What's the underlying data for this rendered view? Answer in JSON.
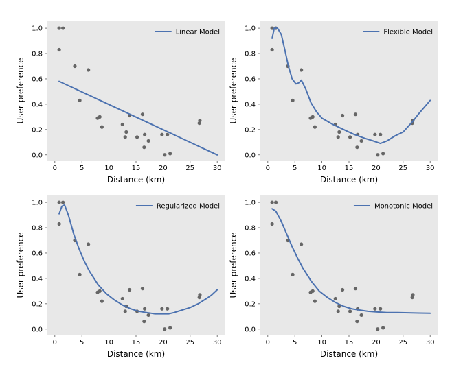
{
  "chart_data": [
    {
      "type": "scatter",
      "xlabel": "Distance (km)",
      "ylabel": "User preference",
      "xlim": [
        -1.5,
        31.5
      ],
      "ylim": [
        -0.05,
        1.06
      ],
      "xticks": [
        "0",
        "5",
        "10",
        "15",
        "20",
        "25",
        "30"
      ],
      "yticks": [
        "0.0",
        "0.2",
        "0.4",
        "0.6",
        "0.8",
        "1.0"
      ],
      "grid": false,
      "legend_position": "top-right",
      "points": {
        "x": [
          0.8,
          1.5,
          0.8,
          3.7,
          4.6,
          6.2,
          8.3,
          7.9,
          8.7,
          12.5,
          13.2,
          13.0,
          13.8,
          15.2,
          16.2,
          16.6,
          16.5,
          17.3,
          19.8,
          20.3,
          20.8,
          21.3,
          26.7,
          26.8
        ],
        "y": [
          1.0,
          1.0,
          0.83,
          0.7,
          0.43,
          0.67,
          0.3,
          0.29,
          0.22,
          0.24,
          0.18,
          0.14,
          0.31,
          0.14,
          0.32,
          0.16,
          0.06,
          0.11,
          0.16,
          0.0,
          0.16,
          0.01,
          0.25,
          0.27
        ]
      },
      "series": [
        {
          "name": "Linear Model",
          "x": [
            0.8,
            30
          ],
          "y": [
            0.58,
            0.0
          ]
        }
      ]
    },
    {
      "type": "scatter",
      "xlabel": "Distance (km)",
      "ylabel": "User preference",
      "xlim": [
        -1.5,
        31.5
      ],
      "ylim": [
        -0.05,
        1.06
      ],
      "xticks": [
        "0",
        "5",
        "10",
        "15",
        "20",
        "25",
        "30"
      ],
      "yticks": [
        "0.0",
        "0.2",
        "0.4",
        "0.6",
        "0.8",
        "1.0"
      ],
      "grid": false,
      "legend_position": "top-right",
      "points": {
        "x": [
          0.8,
          1.5,
          0.8,
          3.7,
          4.6,
          6.2,
          8.3,
          7.9,
          8.7,
          12.5,
          13.2,
          13.0,
          13.8,
          15.2,
          16.2,
          16.6,
          16.5,
          17.3,
          19.8,
          20.3,
          20.8,
          21.3,
          26.7,
          26.8
        ],
        "y": [
          1.0,
          1.0,
          0.83,
          0.7,
          0.43,
          0.67,
          0.3,
          0.29,
          0.22,
          0.24,
          0.18,
          0.14,
          0.31,
          0.14,
          0.32,
          0.16,
          0.06,
          0.11,
          0.16,
          0.0,
          0.16,
          0.01,
          0.25,
          0.27
        ]
      },
      "series": [
        {
          "name": "Flexible Model",
          "x": [
            0.8,
            1.2,
            1.8,
            2.5,
            3.2,
            3.8,
            4.5,
            5.2,
            5.8,
            6.2,
            7.0,
            8.0,
            9.0,
            10.0,
            12.0,
            14.0,
            16.0,
            18.0,
            19.5,
            20.8,
            22.0,
            23.5,
            25.0,
            26.7,
            28.0,
            29.0,
            30.0
          ],
          "y": [
            0.92,
            1.0,
            1.0,
            0.95,
            0.82,
            0.7,
            0.6,
            0.56,
            0.57,
            0.59,
            0.52,
            0.41,
            0.34,
            0.29,
            0.24,
            0.2,
            0.16,
            0.13,
            0.11,
            0.09,
            0.11,
            0.15,
            0.18,
            0.26,
            0.33,
            0.38,
            0.43
          ]
        }
      ]
    },
    {
      "type": "scatter",
      "xlabel": "Distance (km)",
      "ylabel": "User preference",
      "xlim": [
        -1.5,
        31.5
      ],
      "ylim": [
        -0.05,
        1.06
      ],
      "xticks": [
        "0",
        "5",
        "10",
        "15",
        "20",
        "25",
        "30"
      ],
      "yticks": [
        "0.0",
        "0.2",
        "0.4",
        "0.6",
        "0.8",
        "1.0"
      ],
      "grid": false,
      "legend_position": "top-right",
      "points": {
        "x": [
          0.8,
          1.5,
          0.8,
          3.7,
          4.6,
          6.2,
          8.3,
          7.9,
          8.7,
          12.5,
          13.2,
          13.0,
          13.8,
          15.2,
          16.2,
          16.6,
          16.5,
          17.3,
          19.8,
          20.3,
          20.8,
          21.3,
          26.7,
          26.8
        ],
        "y": [
          1.0,
          1.0,
          0.83,
          0.7,
          0.43,
          0.67,
          0.3,
          0.29,
          0.22,
          0.24,
          0.18,
          0.14,
          0.31,
          0.14,
          0.32,
          0.16,
          0.06,
          0.11,
          0.16,
          0.0,
          0.16,
          0.01,
          0.25,
          0.27
        ]
      },
      "series": [
        {
          "name": "Regularized Model",
          "x": [
            0.8,
            1.3,
            1.8,
            2.5,
            3.5,
            4.5,
            5.5,
            6.5,
            8.0,
            9.5,
            11.0,
            12.5,
            14.0,
            15.5,
            17.0,
            18.5,
            20.0,
            21.0,
            22.0,
            23.5,
            25.0,
            26.5,
            28.0,
            29.0,
            30.0
          ],
          "y": [
            0.91,
            0.97,
            0.98,
            0.9,
            0.75,
            0.63,
            0.53,
            0.45,
            0.35,
            0.28,
            0.23,
            0.19,
            0.16,
            0.14,
            0.13,
            0.12,
            0.12,
            0.12,
            0.13,
            0.15,
            0.17,
            0.2,
            0.24,
            0.27,
            0.31
          ]
        }
      ]
    },
    {
      "type": "scatter",
      "xlabel": "Distance (km)",
      "ylabel": "User preference",
      "xlim": [
        -1.5,
        31.5
      ],
      "ylim": [
        -0.05,
        1.06
      ],
      "xticks": [
        "0",
        "5",
        "10",
        "15",
        "20",
        "25",
        "30"
      ],
      "yticks": [
        "0.0",
        "0.2",
        "0.4",
        "0.6",
        "0.8",
        "1.0"
      ],
      "grid": false,
      "legend_position": "top-right",
      "points": {
        "x": [
          0.8,
          1.5,
          0.8,
          3.7,
          4.6,
          6.2,
          8.3,
          7.9,
          8.7,
          12.5,
          13.2,
          13.0,
          13.8,
          15.2,
          16.2,
          16.6,
          16.5,
          17.3,
          19.8,
          20.3,
          20.8,
          21.3,
          26.7,
          26.8
        ],
        "y": [
          1.0,
          1.0,
          0.83,
          0.7,
          0.43,
          0.67,
          0.3,
          0.29,
          0.22,
          0.24,
          0.18,
          0.14,
          0.31,
          0.14,
          0.32,
          0.16,
          0.06,
          0.11,
          0.16,
          0.0,
          0.16,
          0.01,
          0.25,
          0.27
        ]
      },
      "series": [
        {
          "name": "Monotonic Model",
          "x": [
            0.8,
            1.5,
            2.5,
            3.5,
            4.5,
            5.5,
            6.5,
            8.0,
            9.5,
            11.0,
            12.5,
            14.0,
            15.5,
            17.0,
            18.5,
            20.0,
            22.0,
            24.0,
            26.0,
            28.0,
            30.0
          ],
          "y": [
            0.95,
            0.93,
            0.85,
            0.75,
            0.65,
            0.56,
            0.48,
            0.38,
            0.3,
            0.25,
            0.21,
            0.18,
            0.16,
            0.15,
            0.14,
            0.135,
            0.13,
            0.13,
            0.128,
            0.126,
            0.125
          ]
        }
      ]
    }
  ],
  "colors": {
    "panel_background": "#e8e8e8",
    "point": "#666666",
    "line": "#4c72b0",
    "text": "#000000"
  }
}
